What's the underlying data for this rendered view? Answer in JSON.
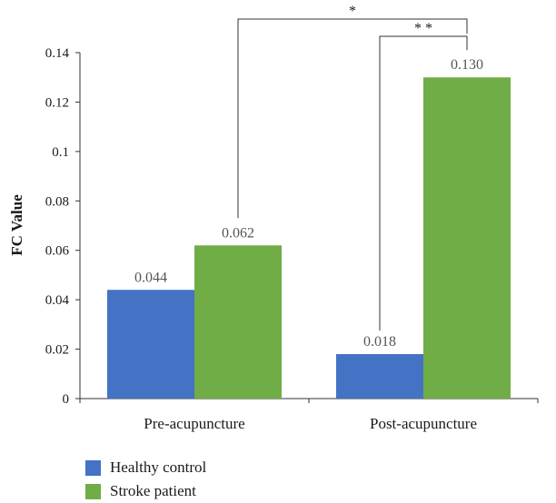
{
  "colors": {
    "healthy": "#4472c4",
    "stroke": "#70ad47",
    "axis": "#333333"
  },
  "chart_data": {
    "type": "bar",
    "title": "",
    "xlabel": "",
    "ylabel": "FC Value",
    "ylim": [
      0,
      0.14
    ],
    "yticks": [
      "0",
      "0.02",
      "0.04",
      "0.06",
      "0.08",
      "0.1",
      "0.12",
      "0.14"
    ],
    "categories": [
      "Pre-acupuncture",
      "Post-acupuncture"
    ],
    "series": [
      {
        "name": "Healthy control",
        "values": [
          0.044,
          0.018
        ],
        "labels": [
          "0.044",
          "0.018"
        ]
      },
      {
        "name": "Stroke patient",
        "values": [
          0.062,
          0.13
        ],
        "labels": [
          "0.062",
          "0.130"
        ]
      }
    ],
    "significance": [
      {
        "label": "*",
        "between": "Pre-acupuncture Stroke patient vs Post-acupuncture Stroke patient"
      },
      {
        "label": "* *",
        "between": "Post-acupuncture Healthy control vs Post-acupuncture Stroke patient"
      }
    ],
    "legend_position": "bottom-left",
    "grid": false
  }
}
